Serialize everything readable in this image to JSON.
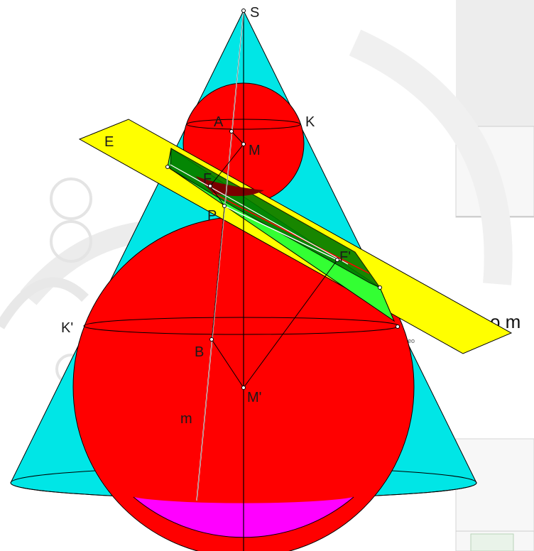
{
  "background": {
    "cut_text": "o m",
    "small_text": "eo"
  },
  "labels": {
    "S": "S",
    "A": "A",
    "K": "K",
    "E": "E",
    "M": "M",
    "F": "F",
    "P": "P",
    "F_prime": "F'",
    "K_prime": "K'",
    "B": "B",
    "M_prime": "M'",
    "m": "m"
  },
  "colors": {
    "cone": "#00e6e6",
    "sphere": "#ff0000",
    "plane": "#ffff00",
    "ellipse_section": "#00b000",
    "cap": "#ff00ff",
    "line": "#000000",
    "highlight_line": "#ffffff"
  }
}
